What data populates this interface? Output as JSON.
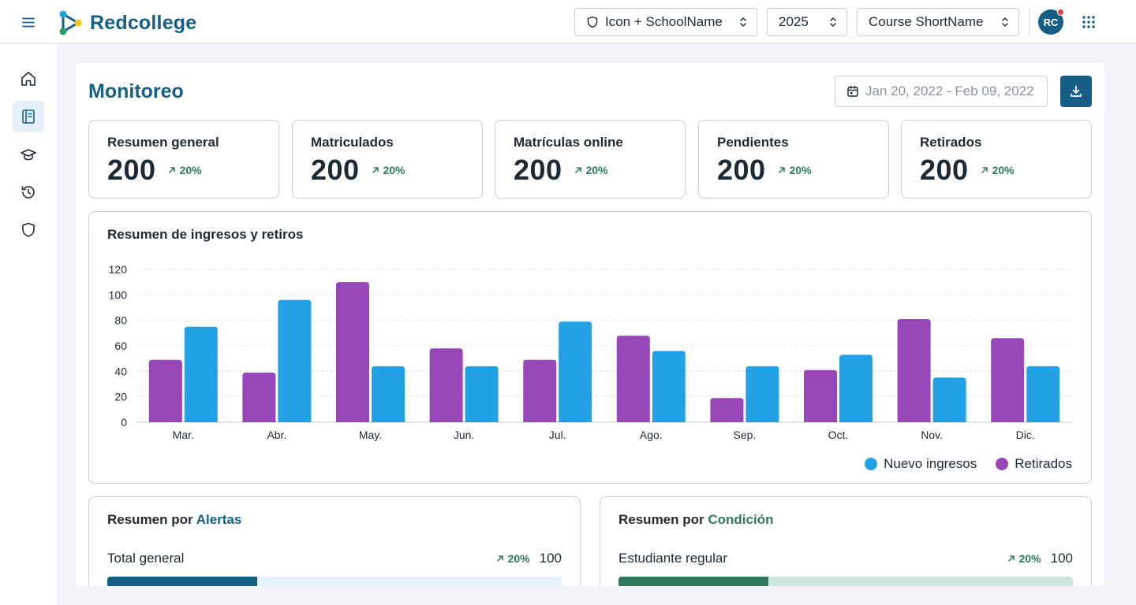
{
  "brand": {
    "name": "Redcollege"
  },
  "header": {
    "school_select": "Icon + SchoolName",
    "year_select": "2025",
    "course_select": "Course ShortName",
    "avatar_initials": "RC"
  },
  "page": {
    "title": "Monitoreo",
    "date_range": "Jan 20, 2022 - Feb 09, 2022"
  },
  "stats": [
    {
      "label": "Resumen general",
      "value": "200",
      "trend": "20%"
    },
    {
      "label": "Matriculados",
      "value": "200",
      "trend": "20%"
    },
    {
      "label": "Matrículas online",
      "value": "200",
      "trend": "20%"
    },
    {
      "label": "Pendientes",
      "value": "200",
      "trend": "20%"
    },
    {
      "label": "Retirados",
      "value": "200",
      "trend": "20%"
    }
  ],
  "chart_data": {
    "type": "bar",
    "title": "Resumen de ingresos y retiros",
    "categories": [
      "Mar.",
      "Abr.",
      "May.",
      "Jun.",
      "Jul.",
      "Ago.",
      "Sep.",
      "Oct.",
      "Nov.",
      "Dic."
    ],
    "series": [
      {
        "name": "Retirados",
        "color": "#9747b8",
        "values": [
          49,
          39,
          110,
          58,
          49,
          68,
          19,
          41,
          81,
          66
        ]
      },
      {
        "name": "Nuevo ingresos",
        "color": "#22a2e4",
        "values": [
          75,
          96,
          44,
          44,
          79,
          56,
          44,
          53,
          35,
          44
        ]
      }
    ],
    "legend": [
      {
        "name": "Nuevo ingresos",
        "color": "#22a2e4"
      },
      {
        "name": "Retirados",
        "color": "#9747b8"
      }
    ],
    "ylim": [
      0,
      120
    ],
    "yticks": [
      "0",
      "20",
      "40",
      "60",
      "80",
      "100",
      "120"
    ],
    "grid": true,
    "legend_position": "bottom-right"
  },
  "alerts_summary": {
    "title_prefix": "Resumen por",
    "title_highlight": "Alertas",
    "row_label": "Total general",
    "trend": "20%",
    "count": "100",
    "progress": 0.33,
    "fill_color": "#155e86",
    "track_color": "#e3f2fc"
  },
  "condition_summary": {
    "title_prefix": "Resumen por",
    "title_highlight": "Condición",
    "row_label": "Estudiante regular",
    "trend": "20%",
    "count": "100",
    "progress": 0.33,
    "fill_color": "#2d7a5a",
    "track_color": "#cfe6dc"
  }
}
